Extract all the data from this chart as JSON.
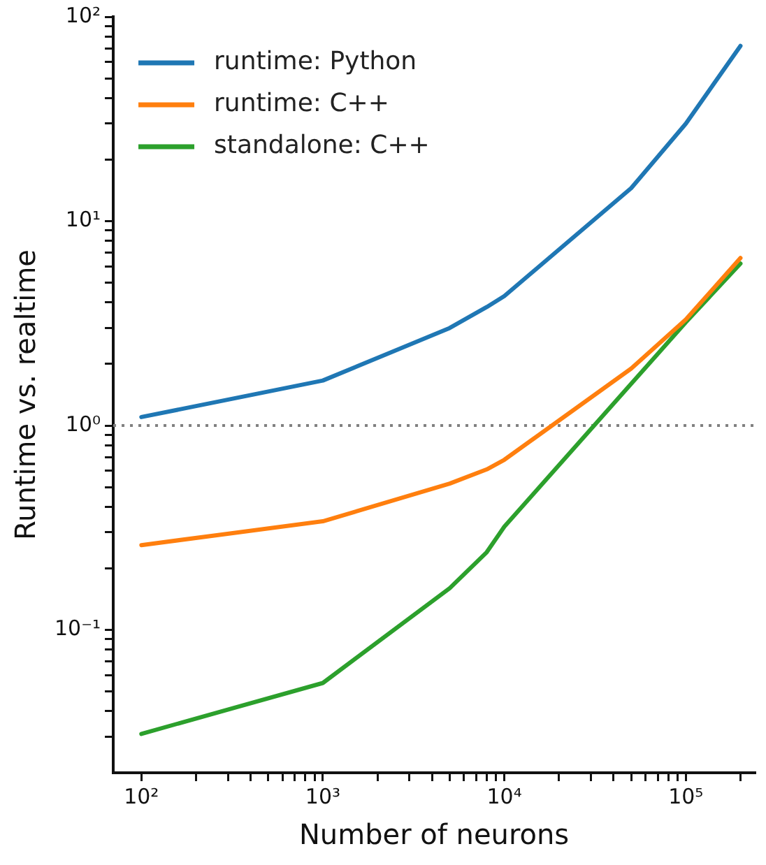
{
  "chart_data": {
    "type": "line",
    "xlabel": "Number of neurons",
    "ylabel": "Runtime vs. realtime",
    "log": "xy",
    "grid": false,
    "legend": "top left",
    "marker": "none",
    "line_style": "solid",
    "x": [
      100,
      1000,
      5000,
      8000,
      10000,
      50000,
      100000,
      200000
    ],
    "series": [
      {
        "name": "runtime: Python",
        "color": "#1f77b4",
        "values": [
          1.1,
          1.66,
          3.0,
          3.8,
          4.3,
          14.5,
          30,
          72
        ]
      },
      {
        "name": "runtime: C++",
        "color": "#ff7f0e",
        "values": [
          0.26,
          0.34,
          0.52,
          0.61,
          0.68,
          1.9,
          3.3,
          6.6
        ]
      },
      {
        "name": "standalone: C++",
        "color": "#2ca02c",
        "values": [
          0.031,
          0.055,
          0.16,
          0.24,
          0.32,
          1.6,
          3.2,
          6.2
        ]
      }
    ],
    "xlim": [
      70,
      240000
    ],
    "ylim": [
      0.02,
      100
    ],
    "xticks": [
      {
        "value": 100,
        "label": "10²"
      },
      {
        "value": 200,
        "label": null
      },
      {
        "value": 300,
        "label": null
      },
      {
        "value": 400,
        "label": null
      },
      {
        "value": 500,
        "label": null
      },
      {
        "value": 600,
        "label": null
      },
      {
        "value": 700,
        "label": null
      },
      {
        "value": 800,
        "label": null
      },
      {
        "value": 900,
        "label": null
      },
      {
        "value": 1000,
        "label": "10³"
      },
      {
        "value": 2000,
        "label": null
      },
      {
        "value": 3000,
        "label": null
      },
      {
        "value": 4000,
        "label": null
      },
      {
        "value": 5000,
        "label": null
      },
      {
        "value": 6000,
        "label": null
      },
      {
        "value": 7000,
        "label": null
      },
      {
        "value": 8000,
        "label": null
      },
      {
        "value": 9000,
        "label": null
      },
      {
        "value": 10000,
        "label": "10⁴"
      },
      {
        "value": 20000,
        "label": null
      },
      {
        "value": 30000,
        "label": null
      },
      {
        "value": 40000,
        "label": null
      },
      {
        "value": 50000,
        "label": null
      },
      {
        "value": 60000,
        "label": null
      },
      {
        "value": 70000,
        "label": null
      },
      {
        "value": 80000,
        "label": null
      },
      {
        "value": 90000,
        "label": null
      },
      {
        "value": 100000,
        "label": "10⁵"
      },
      {
        "value": 200000,
        "label": null
      }
    ],
    "yticks": [
      {
        "value": 0.03,
        "label": null
      },
      {
        "value": 0.04,
        "label": null
      },
      {
        "value": 0.05,
        "label": null
      },
      {
        "value": 0.06,
        "label": null
      },
      {
        "value": 0.07,
        "label": null
      },
      {
        "value": 0.08,
        "label": null
      },
      {
        "value": 0.09,
        "label": null
      },
      {
        "value": 0.1,
        "label": "10⁻¹"
      },
      {
        "value": 0.2,
        "label": null
      },
      {
        "value": 0.3,
        "label": null
      },
      {
        "value": 0.4,
        "label": null
      },
      {
        "value": 0.5,
        "label": null
      },
      {
        "value": 0.6,
        "label": null
      },
      {
        "value": 0.7,
        "label": null
      },
      {
        "value": 0.8,
        "label": null
      },
      {
        "value": 0.9,
        "label": null
      },
      {
        "value": 1,
        "label": "10⁰"
      },
      {
        "value": 2,
        "label": null
      },
      {
        "value": 3,
        "label": null
      },
      {
        "value": 4,
        "label": null
      },
      {
        "value": 5,
        "label": null
      },
      {
        "value": 6,
        "label": null
      },
      {
        "value": 7,
        "label": null
      },
      {
        "value": 8,
        "label": null
      },
      {
        "value": 9,
        "label": null
      },
      {
        "value": 10,
        "label": "10¹"
      },
      {
        "value": 20,
        "label": null
      },
      {
        "value": 30,
        "label": null
      },
      {
        "value": 40,
        "label": null
      },
      {
        "value": 50,
        "label": null
      },
      {
        "value": 60,
        "label": null
      },
      {
        "value": 70,
        "label": null
      },
      {
        "value": 80,
        "label": null
      },
      {
        "value": 90,
        "label": null
      },
      {
        "value": 100,
        "label": "10²"
      }
    ],
    "ref_lines": [
      {
        "axis": "y",
        "value": 1,
        "color": "#808080",
        "line_style": "dotted"
      }
    ]
  }
}
